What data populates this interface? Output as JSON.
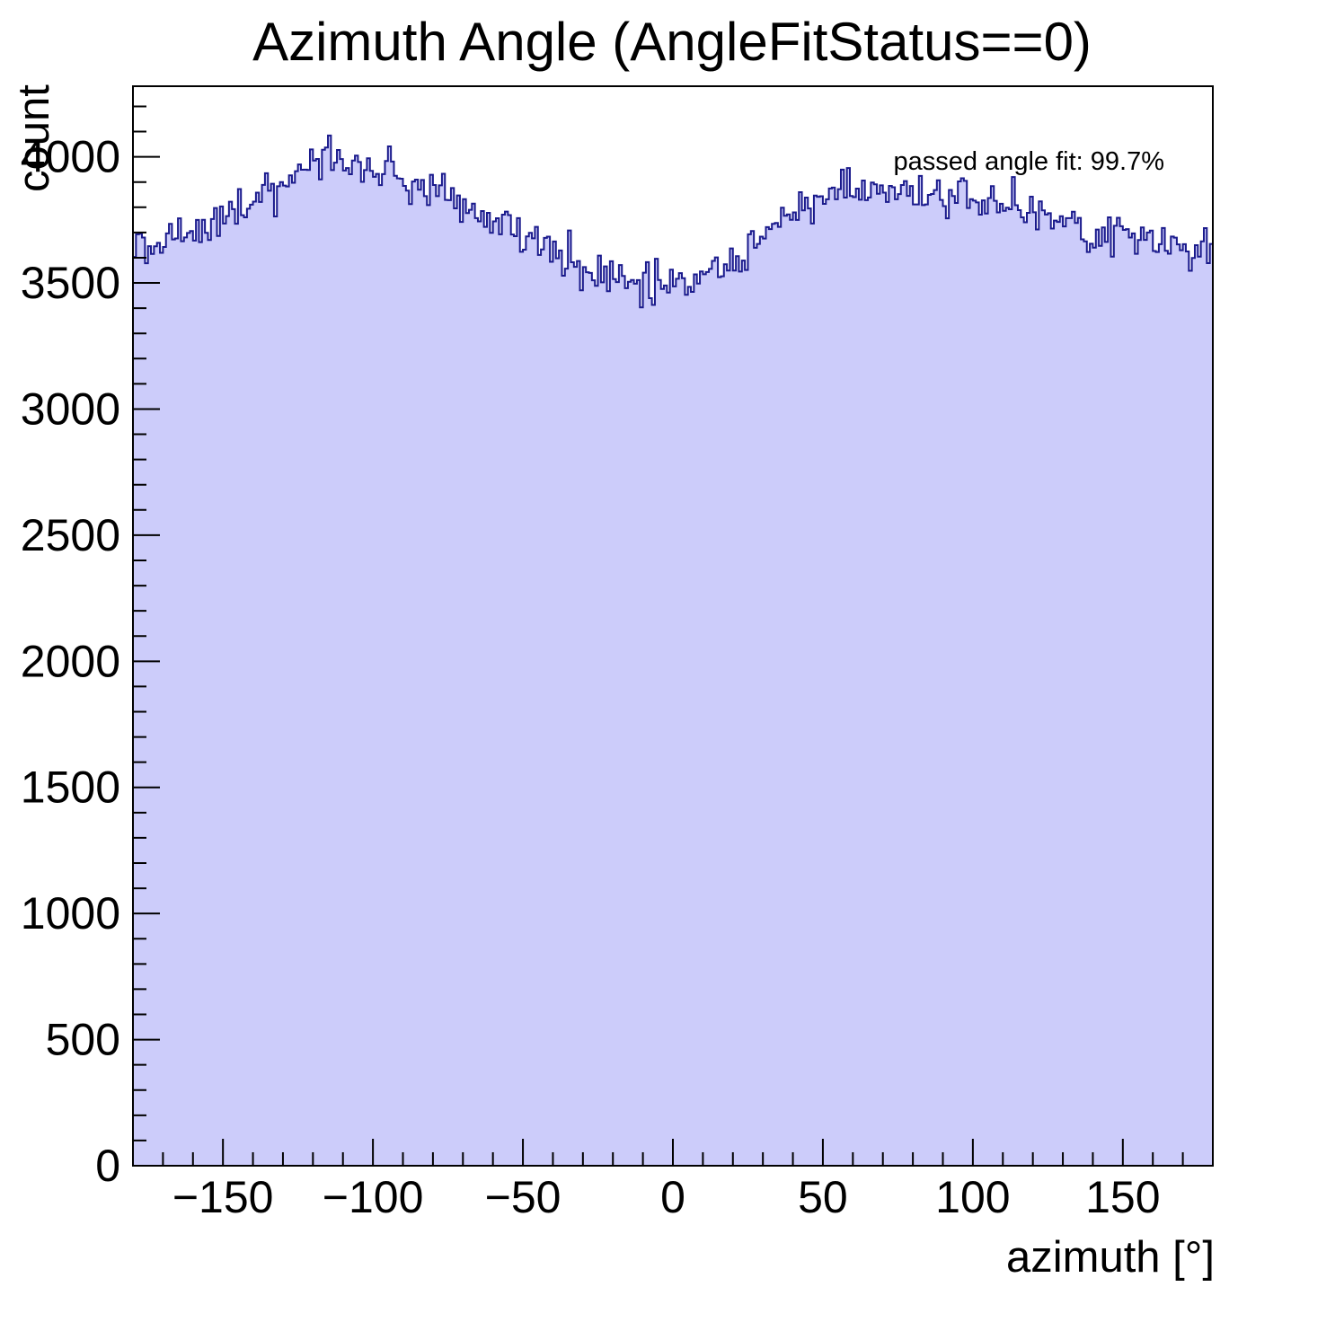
{
  "chart_data": {
    "type": "histogram",
    "title": "Azimuth Angle (AngleFitStatus==0)",
    "xlabel": "azimuth [°]",
    "ylabel": "count",
    "annotation": "passed angle fit: 99.7%",
    "xlim": [
      -180,
      180
    ],
    "ylim": [
      0,
      4280
    ],
    "bins": 360,
    "x_major_tick": 50,
    "x_minor_tick": 10,
    "x_label_min": -150,
    "x_label_max": 150,
    "y_major_tick": 500,
    "y_minor_tick": 100,
    "y_label_max": 4000,
    "legend_position": "none",
    "grid": false,
    "style": {
      "fill_color": "#ccccfa",
      "line_color": "#1a1a8c",
      "frame_color": "#000000"
    },
    "noise_sigma": 40,
    "noise_seed": 12,
    "envelope": [
      [
        -180,
        3655
      ],
      [
        -172,
        3680
      ],
      [
        -164,
        3705
      ],
      [
        -156,
        3740
      ],
      [
        -148,
        3775
      ],
      [
        -140,
        3820
      ],
      [
        -132,
        3880
      ],
      [
        -126,
        3935
      ],
      [
        -120,
        3980
      ],
      [
        -115,
        4005
      ],
      [
        -110,
        3980
      ],
      [
        -104,
        3945
      ],
      [
        -98,
        3930
      ],
      [
        -93,
        3950
      ],
      [
        -88,
        3915
      ],
      [
        -80,
        3880
      ],
      [
        -72,
        3820
      ],
      [
        -64,
        3775
      ],
      [
        -56,
        3725
      ],
      [
        -48,
        3675
      ],
      [
        -40,
        3635
      ],
      [
        -32,
        3575
      ],
      [
        -24,
        3530
      ],
      [
        -16,
        3515
      ],
      [
        -8,
        3505
      ],
      [
        0,
        3495
      ],
      [
        8,
        3530
      ],
      [
        16,
        3570
      ],
      [
        24,
        3625
      ],
      [
        32,
        3700
      ],
      [
        40,
        3765
      ],
      [
        48,
        3820
      ],
      [
        54,
        3865
      ],
      [
        60,
        3920
      ],
      [
        66,
        3895
      ],
      [
        72,
        3870
      ],
      [
        80,
        3855
      ],
      [
        88,
        3855
      ],
      [
        96,
        3845
      ],
      [
        103,
        3855
      ],
      [
        110,
        3815
      ],
      [
        118,
        3790
      ],
      [
        126,
        3760
      ],
      [
        134,
        3730
      ],
      [
        142,
        3705
      ],
      [
        150,
        3695
      ],
      [
        158,
        3670
      ],
      [
        166,
        3650
      ],
      [
        174,
        3640
      ],
      [
        180,
        3630
      ]
    ]
  }
}
